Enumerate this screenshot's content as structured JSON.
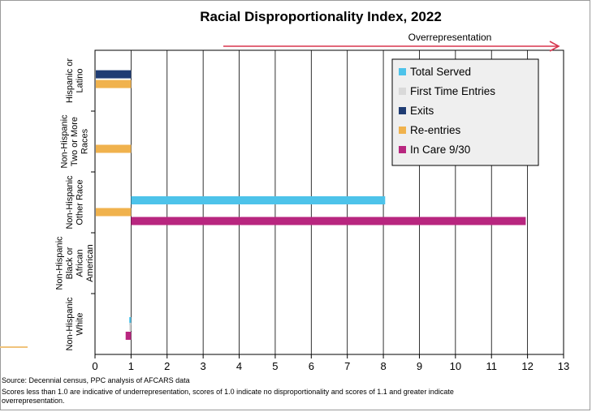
{
  "chart_data": {
    "type": "bar",
    "orientation": "horizontal",
    "title": "Racial Disproportionality Index, 2022",
    "annotation": "Overrepresentation",
    "categories": [
      [
        "Hispanic or",
        "Latino"
      ],
      [
        "Non-Hispanic",
        "Two or More",
        "Races"
      ],
      [
        "Non-Hispanic",
        "Other Race"
      ],
      [
        "Non-Hispanic",
        "Black or",
        "African",
        "American"
      ],
      [
        "Non-Hispanic",
        "White"
      ]
    ],
    "series": [
      {
        "name": "Total Served",
        "color": "#4dc3ea",
        "values": [
          null,
          null,
          8.05,
          null,
          0.95
        ]
      },
      {
        "name": "First Time Entries",
        "color": "#d9d9d9",
        "values": [
          null,
          null,
          null,
          null,
          0.95
        ]
      },
      {
        "name": "Exits",
        "color": "#1f3c73",
        "values": [
          1.0,
          null,
          null,
          null,
          null
        ]
      },
      {
        "name": "Re-entries",
        "color": "#f0b24d",
        "values": [
          1.0,
          1.0,
          1.0,
          null,
          null
        ]
      },
      {
        "name": "In Care 9/30",
        "color": "#b8267f",
        "values": [
          null,
          null,
          11.95,
          null,
          0.85
        ]
      }
    ],
    "xlim": [
      0,
      13
    ],
    "xticks": [
      0,
      1,
      2,
      3,
      4,
      5,
      6,
      7,
      8,
      9,
      10,
      11,
      12,
      13
    ],
    "grid": true,
    "legend_position": "top-right",
    "arrow_color": "#d8374f"
  },
  "footnotes": {
    "source": "Source: Decennial census, PPC analysis of AFCARS data",
    "note_line1": "Scores less than 1.0 are indicative of underrepresentation, scores of 1.0 indicate no disproportionality and scores of 1.1 and greater indicate",
    "note_line2": "overrepresentation."
  }
}
